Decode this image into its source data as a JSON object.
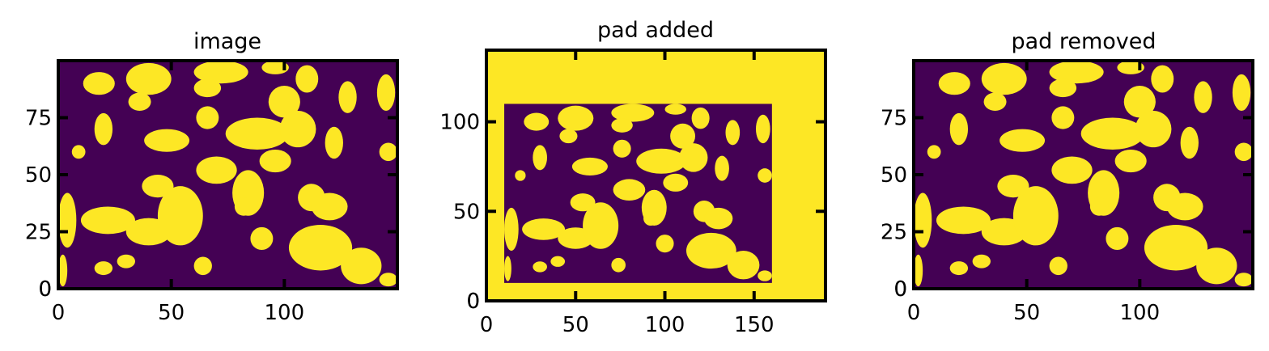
{
  "colors": {
    "background": "#440154",
    "foreground": "#fde725",
    "frame": "#000000"
  },
  "chart_data": [
    {
      "type": "heatmap",
      "title": "image",
      "colormap": "viridis (binary: 0 = dark purple, 1 = yellow)",
      "xlim": [
        0,
        150
      ],
      "ylim": [
        0,
        100
      ],
      "xticks": [
        0,
        50,
        100
      ],
      "yticks": [
        0,
        25,
        50,
        75
      ],
      "pad": [
        0,
        0,
        0,
        0
      ],
      "blobs": [
        {
          "x": 18,
          "y": 90,
          "w": 7,
          "h": 5
        },
        {
          "x": 40,
          "y": 92,
          "w": 10,
          "h": 7
        },
        {
          "x": 36,
          "y": 82,
          "w": 5,
          "h": 4
        },
        {
          "x": 72,
          "y": 95,
          "w": 12,
          "h": 5
        },
        {
          "x": 66,
          "y": 88,
          "w": 6,
          "h": 4
        },
        {
          "x": 96,
          "y": 97,
          "w": 6,
          "h": 3
        },
        {
          "x": 110,
          "y": 92,
          "w": 5,
          "h": 6
        },
        {
          "x": 128,
          "y": 84,
          "w": 4,
          "h": 7
        },
        {
          "x": 145,
          "y": 86,
          "w": 4,
          "h": 8
        },
        {
          "x": 20,
          "y": 70,
          "w": 4,
          "h": 7
        },
        {
          "x": 48,
          "y": 65,
          "w": 10,
          "h": 5
        },
        {
          "x": 66,
          "y": 75,
          "w": 5,
          "h": 5
        },
        {
          "x": 88,
          "y": 68,
          "w": 14,
          "h": 7
        },
        {
          "x": 100,
          "y": 82,
          "w": 7,
          "h": 7
        },
        {
          "x": 106,
          "y": 70,
          "w": 8,
          "h": 8
        },
        {
          "x": 122,
          "y": 64,
          "w": 4,
          "h": 7
        },
        {
          "x": 146,
          "y": 60,
          "w": 4,
          "h": 4
        },
        {
          "x": 9,
          "y": 60,
          "w": 3,
          "h": 3
        },
        {
          "x": 4,
          "y": 30,
          "w": 4,
          "h": 12
        },
        {
          "x": 22,
          "y": 30,
          "w": 12,
          "h": 6
        },
        {
          "x": 40,
          "y": 25,
          "w": 10,
          "h": 6
        },
        {
          "x": 54,
          "y": 32,
          "w": 10,
          "h": 13
        },
        {
          "x": 44,
          "y": 45,
          "w": 7,
          "h": 5
        },
        {
          "x": 70,
          "y": 52,
          "w": 9,
          "h": 6
        },
        {
          "x": 84,
          "y": 42,
          "w": 7,
          "h": 10
        },
        {
          "x": 96,
          "y": 56,
          "w": 7,
          "h": 5
        },
        {
          "x": 112,
          "y": 40,
          "w": 6,
          "h": 6
        },
        {
          "x": 120,
          "y": 36,
          "w": 8,
          "h": 6
        },
        {
          "x": 116,
          "y": 18,
          "w": 14,
          "h": 10
        },
        {
          "x": 134,
          "y": 10,
          "w": 9,
          "h": 8
        },
        {
          "x": 146,
          "y": 4,
          "w": 4,
          "h": 3
        },
        {
          "x": 90,
          "y": 22,
          "w": 5,
          "h": 5
        },
        {
          "x": 64,
          "y": 10,
          "w": 4,
          "h": 4
        },
        {
          "x": 20,
          "y": 9,
          "w": 4,
          "h": 3
        },
        {
          "x": 2,
          "y": 8,
          "w": 2,
          "h": 7
        },
        {
          "x": 30,
          "y": 12,
          "w": 4,
          "h": 3
        },
        {
          "x": 82,
          "y": 36,
          "w": 4,
          "h": 4
        }
      ]
    },
    {
      "type": "heatmap",
      "title": "pad added",
      "colormap": "viridis (binary: 0 = dark purple, 1 = yellow)",
      "xlim": [
        0,
        190
      ],
      "ylim": [
        0,
        140
      ],
      "xticks": [
        0,
        50,
        100,
        150
      ],
      "yticks": [
        0,
        50,
        100
      ],
      "pad": [
        10,
        30,
        10,
        30
      ],
      "blobs": "same pattern as panel 1, offset by the pad; padding region is yellow"
    },
    {
      "type": "heatmap",
      "title": "pad removed",
      "colormap": "viridis (binary: 0 = dark purple, 1 = yellow)",
      "xlim": [
        0,
        150
      ],
      "ylim": [
        0,
        100
      ],
      "xticks": [
        0,
        50,
        100
      ],
      "yticks": [
        0,
        25,
        50,
        75
      ],
      "pad": [
        0,
        0,
        0,
        0
      ],
      "blobs": "same pattern as panel 1"
    }
  ]
}
